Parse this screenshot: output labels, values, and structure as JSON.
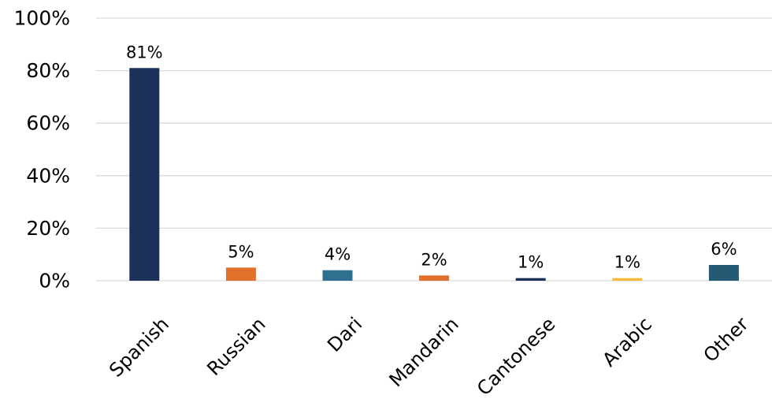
{
  "chart_data": {
    "type": "bar",
    "title": "",
    "xlabel": "",
    "ylabel": "",
    "categories": [
      "Spanish",
      "Russian",
      "Dari",
      "Mandarin",
      "Cantonese",
      "Arabic",
      "Other"
    ],
    "values": [
      81,
      5,
      4,
      2,
      1,
      1,
      6
    ],
    "data_labels": [
      "81%",
      "5%",
      "4%",
      "2%",
      "1%",
      "1%",
      "6%"
    ],
    "bar_colors": [
      "#1b3159",
      "#e2712b",
      "#2f7090",
      "#e2712b",
      "#1b3159",
      "#f4b93a",
      "#245a73"
    ],
    "ylim": [
      0,
      100
    ],
    "yticks": [
      0,
      20,
      40,
      60,
      80,
      100
    ],
    "ytick_labels": [
      "0%",
      "20%",
      "40%",
      "60%",
      "80%",
      "100%"
    ],
    "grid": true,
    "legend": "none"
  }
}
